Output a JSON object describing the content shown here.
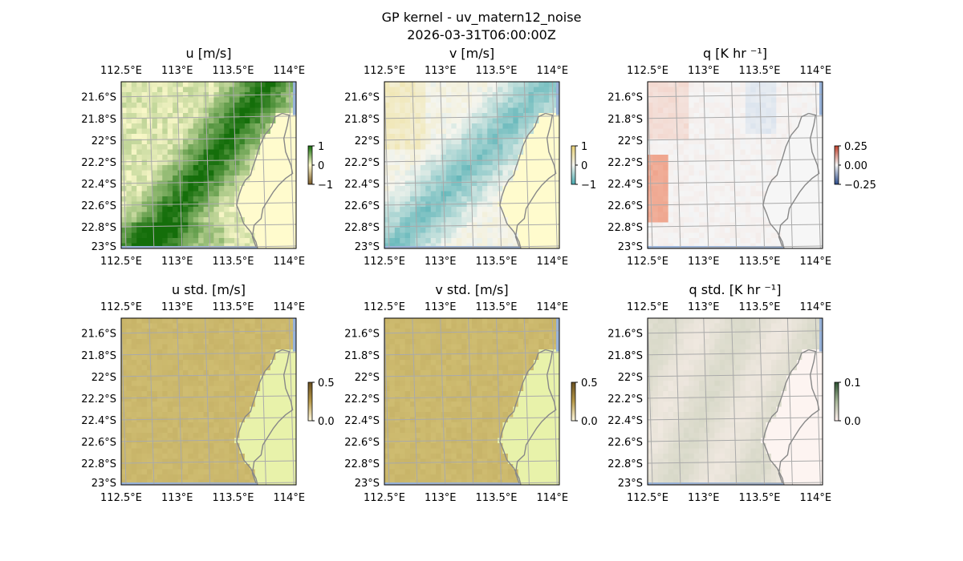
{
  "figure": {
    "title_line1": "GP kernel - uv_matern12_noise",
    "title_line2": "2026-03-31T06:00:00Z"
  },
  "chart_data": [
    {
      "type": "heatmap",
      "title": "u [m/s]",
      "xlabel": "",
      "ylabel": "",
      "x_ticks": [
        "112.5°E",
        "113°E",
        "113.5°E",
        "114°E"
      ],
      "y_ticks": [
        "21.6°S",
        "21.8°S",
        "22°S",
        "22.2°S",
        "22.4°S",
        "22.6°S",
        "22.8°S",
        "23°S"
      ],
      "colorbar": {
        "ticks": [
          "1",
          "0",
          "−1"
        ],
        "range": [
          -1,
          1
        ],
        "colormap": "brown-white-green"
      },
      "field_pattern": "positive band (green) running from the north-east toward the centre; weak positive (yellow) elsewhere over ocean"
    },
    {
      "type": "heatmap",
      "title": "v [m/s]",
      "xlabel": "",
      "ylabel": "",
      "x_ticks": [
        "112.5°E",
        "113°E",
        "113.5°E",
        "114°E"
      ],
      "y_ticks": [
        "21.6°S",
        "21.8°S",
        "22°S",
        "22.2°S",
        "22.4°S",
        "22.6°S",
        "22.8°S",
        "23°S"
      ],
      "colorbar": {
        "ticks": [
          "1",
          "0",
          "−1"
        ],
        "range": [
          -1,
          1
        ],
        "colormap": "yellow-white-teal"
      },
      "field_pattern": "negative (teal) diagonal band through centre and south; weak positive (yellow) in north-west"
    },
    {
      "type": "heatmap",
      "title": "q [K hr ⁻¹]",
      "xlabel": "",
      "ylabel": "",
      "x_ticks": [
        "112.5°E",
        "113°E",
        "113.5°E",
        "114°E"
      ],
      "y_ticks": [
        "21.6°S",
        "21.8°S",
        "22°S",
        "22.2°S",
        "22.4°S",
        "22.6°S",
        "22.8°S",
        "23°S"
      ],
      "colorbar": {
        "ticks": [
          "0.25",
          "0.00",
          "−0.25"
        ],
        "range": [
          -0.35,
          0.35
        ],
        "colormap": "red-white-blue"
      },
      "field_pattern": "small positive (orange) values on western edge; near zero elsewhere"
    },
    {
      "type": "heatmap",
      "title": "u std. [m/s]",
      "xlabel": "",
      "ylabel": "",
      "x_ticks": [
        "112.5°E",
        "113°E",
        "113.5°E",
        "114°E"
      ],
      "y_ticks": [
        "21.6°S",
        "21.8°S",
        "22°S",
        "22.2°S",
        "22.4°S",
        "22.6°S",
        "22.8°S",
        "23°S"
      ],
      "colorbar": {
        "ticks": [
          "0.5",
          "0.0"
        ],
        "range": [
          0,
          0.5
        ],
        "colormap": "khaki"
      },
      "field_pattern": "uniform ~0.45 over ocean, lower near coast"
    },
    {
      "type": "heatmap",
      "title": "v std. [m/s]",
      "xlabel": "",
      "ylabel": "",
      "x_ticks": [
        "112.5°E",
        "113°E",
        "113.5°E",
        "114°E"
      ],
      "y_ticks": [
        "21.6°S",
        "21.8°S",
        "22°S",
        "22.2°S",
        "22.4°S",
        "22.6°S",
        "22.8°S",
        "23°S"
      ],
      "colorbar": {
        "ticks": [
          "0.5",
          "0.0"
        ],
        "range": [
          0,
          0.5
        ],
        "colormap": "khaki"
      },
      "field_pattern": "uniform ~0.45 over ocean, lower near coast"
    },
    {
      "type": "heatmap",
      "title": "q std. [K hr ⁻¹]",
      "xlabel": "",
      "ylabel": "",
      "x_ticks": [
        "112.5°E",
        "113°E",
        "113.5°E",
        "114°E"
      ],
      "y_ticks": [
        "21.6°S",
        "21.8°S",
        "22°S",
        "22.2°S",
        "22.4°S",
        "22.6°S",
        "22.8°S",
        "23°S"
      ],
      "colorbar": {
        "ticks": [
          "0.1",
          "0.0"
        ],
        "range": [
          0,
          0.12
        ],
        "colormap": "pink-green"
      },
      "field_pattern": "low values (pale) with faint greenish streaks over ocean"
    }
  ]
}
